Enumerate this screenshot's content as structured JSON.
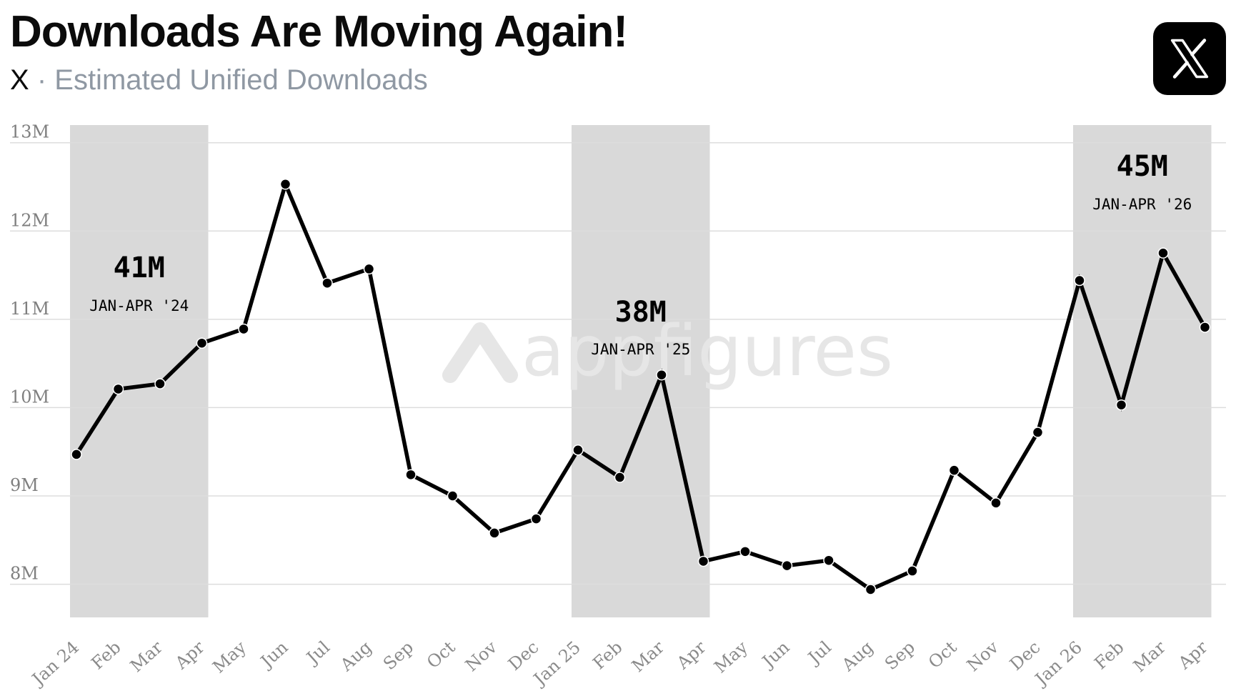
{
  "header": {
    "title": "Downloads Are Moving Again!",
    "app_name": "X",
    "separator": "·",
    "metric": "Estimated Unified Downloads",
    "logo_icon": "x-logo-icon"
  },
  "watermark": "appfigures",
  "colors": {
    "line": "#000000",
    "band": "#d9d9d9",
    "grid": "#dddddd",
    "subtitle_gray": "#8f98a3"
  },
  "chart_data": {
    "type": "line",
    "title": "Downloads Are Moving Again!",
    "subtitle": "X · Estimated Unified Downloads",
    "xlabel": "",
    "ylabel": "",
    "ylim": [
      7.6,
      13.2
    ],
    "yticks": [
      8,
      9,
      10,
      11,
      12,
      13
    ],
    "ytick_labels": [
      "8M",
      "9M",
      "10M",
      "11M",
      "12M",
      "13M"
    ],
    "grid": true,
    "categories": [
      "Jan 24",
      "Feb",
      "Mar",
      "Apr",
      "May",
      "Jun",
      "Jul",
      "Aug",
      "Sep",
      "Oct",
      "Nov",
      "Dec",
      "Jan 25",
      "Feb",
      "Mar",
      "Apr",
      "May",
      "Jun",
      "Jul",
      "Aug",
      "Sep",
      "Oct",
      "Nov",
      "Dec",
      "Jan 26",
      "Feb",
      "Mar",
      "Apr"
    ],
    "series": [
      {
        "values": [
          9.47,
          10.21,
          10.27,
          10.73,
          10.89,
          12.53,
          11.41,
          11.57,
          9.24,
          9.0,
          8.58,
          8.74,
          9.52,
          9.21,
          10.37,
          8.26,
          8.37,
          8.21,
          8.27,
          7.94,
          8.15,
          9.29,
          8.92,
          9.72,
          11.44,
          10.03,
          11.75,
          10.91
        ]
      }
    ],
    "highlight_bands": [
      {
        "start": "Jan 24",
        "end": "Apr",
        "value": "41M",
        "label": "JAN-APR '24"
      },
      {
        "start": "Jan 25",
        "end": "Apr",
        "value": "38M",
        "label": "JAN-APR '25"
      },
      {
        "start": "Jan 26",
        "end": "Apr",
        "value": "45M",
        "label": "JAN-APR '26"
      }
    ]
  }
}
